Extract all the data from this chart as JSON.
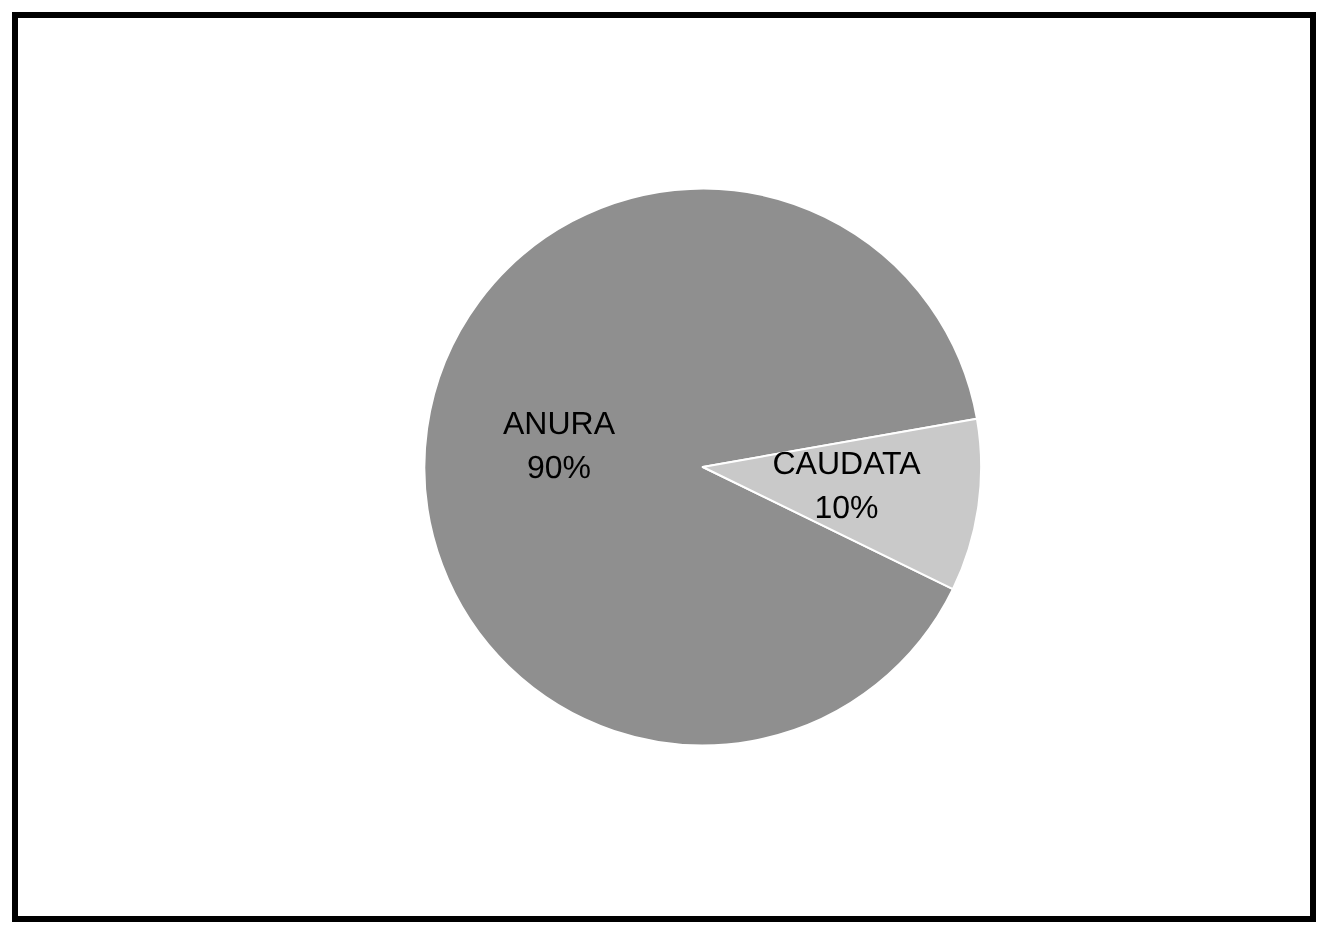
{
  "chart_data": {
    "type": "pie",
    "categories": [
      "ANURA",
      "CAUDATA"
    ],
    "values": [
      90,
      10
    ],
    "value_labels": [
      "90%",
      "10%"
    ],
    "colors": [
      "#8f8f8f",
      "#c9c9c9"
    ],
    "legend": false
  }
}
